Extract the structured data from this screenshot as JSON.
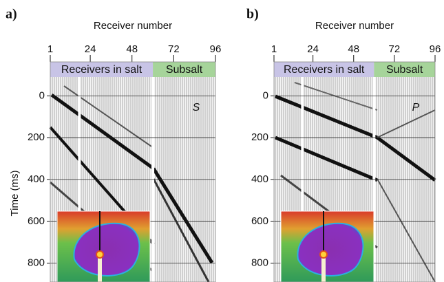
{
  "chart_data": {
    "type": "seismic-gather",
    "panels": [
      {
        "label": "a)",
        "x_title": "Receiver number",
        "y_title": "Time (ms)",
        "annotation": "S",
        "xlim": [
          1,
          96
        ],
        "xticks": [
          1,
          24,
          48,
          72,
          96
        ],
        "ylim": [
          -90,
          890
        ],
        "yticks": [
          0,
          200,
          400,
          600,
          800
        ],
        "bands": [
          {
            "label": "Receivers in salt",
            "from": 1,
            "to": 60,
            "color": "#c8c4e6"
          },
          {
            "label": "Subsalt",
            "from": 60,
            "to": 96,
            "color": "#a6d49a"
          }
        ]
      },
      {
        "label": "b)",
        "x_title": "Receiver number",
        "annotation": "P",
        "xlim": [
          1,
          96
        ],
        "xticks": [
          1,
          24,
          48,
          72,
          96
        ],
        "ylim": [
          -90,
          890
        ],
        "yticks": [
          0,
          200,
          400,
          600,
          800
        ],
        "bands": [
          {
            "label": "Receivers in salt",
            "from": 1,
            "to": 60,
            "color": "#c8c4e6"
          },
          {
            "label": "Subsalt",
            "from": 60,
            "to": 96,
            "color": "#a6d49a"
          }
        ]
      }
    ]
  }
}
